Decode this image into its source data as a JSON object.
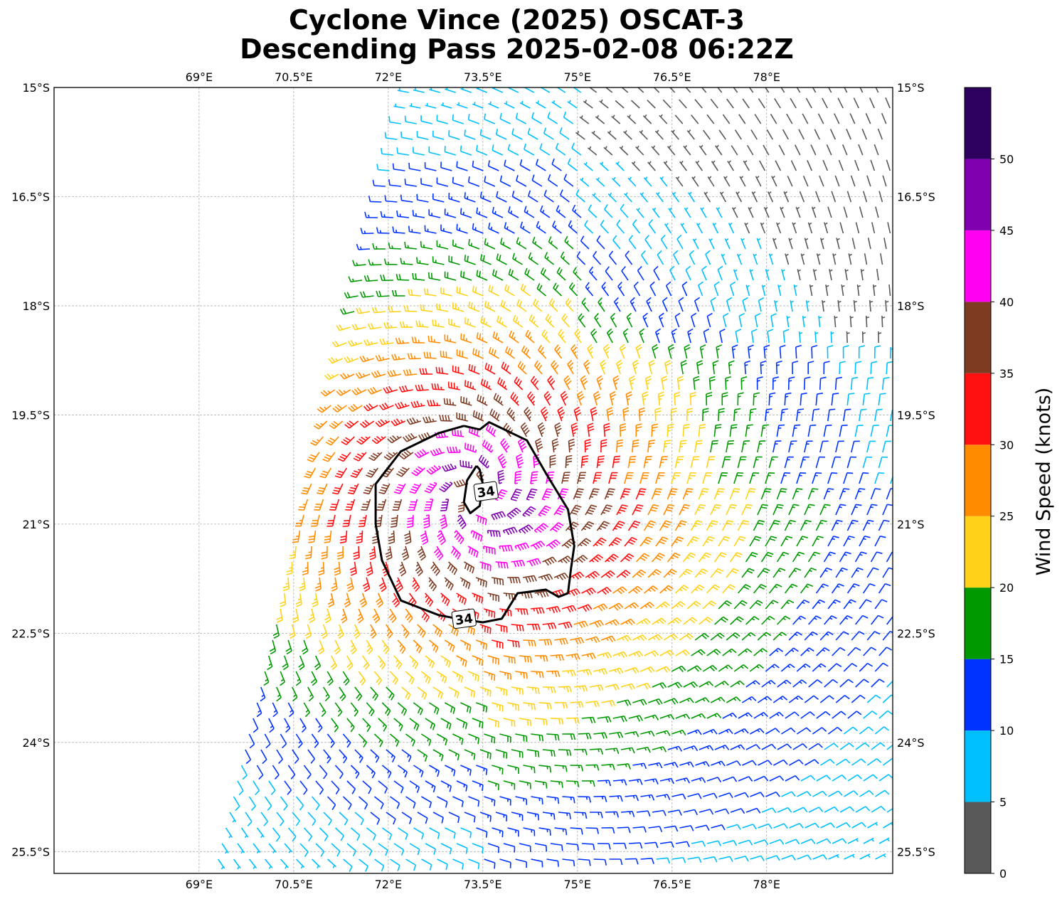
{
  "title_line1": "Cyclone Vince (2025) OSCAT-3",
  "title_line2": "Descending Pass 2025-02-08 06:22Z",
  "map": {
    "lon_range": [
      66.7,
      80.0
    ],
    "lat_range": [
      -15.0,
      -25.8
    ],
    "lon_ticks": [
      {
        "value": 69.0,
        "label": "69°E"
      },
      {
        "value": 70.5,
        "label": "70.5°E"
      },
      {
        "value": 72.0,
        "label": "72°E"
      },
      {
        "value": 73.5,
        "label": "73.5°E"
      },
      {
        "value": 75.0,
        "label": "75°E"
      },
      {
        "value": 76.5,
        "label": "76.5°E"
      },
      {
        "value": 78.0,
        "label": "78°E"
      }
    ],
    "lat_ticks": [
      {
        "value": -15.0,
        "label": "15°S"
      },
      {
        "value": -16.5,
        "label": "16.5°S"
      },
      {
        "value": -18.0,
        "label": "18°S"
      },
      {
        "value": -19.5,
        "label": "19.5°S"
      },
      {
        "value": -21.0,
        "label": "21°S"
      },
      {
        "value": -22.5,
        "label": "22.5°S"
      },
      {
        "value": -24.0,
        "label": "24°S"
      },
      {
        "value": -25.5,
        "label": "25.5°S"
      }
    ],
    "grid": true,
    "storm_center": {
      "lon": 73.4,
      "lat": -20.6
    },
    "swath_west_edge": [
      [
        72.3,
        -15.0
      ],
      [
        69.2,
        -25.8
      ]
    ],
    "contour_34kt": {
      "level_label": "34",
      "label_positions": [
        {
          "lon": 73.55,
          "lat": -20.55
        },
        {
          "lon": 73.2,
          "lat": -22.3
        }
      ],
      "outer": [
        [
          73.2,
          -19.65
        ],
        [
          72.8,
          -19.75
        ],
        [
          72.2,
          -20.0
        ],
        [
          71.8,
          -20.45
        ],
        [
          71.8,
          -21.0
        ],
        [
          71.9,
          -21.5
        ],
        [
          72.2,
          -22.05
        ],
        [
          72.5,
          -22.15
        ],
        [
          72.8,
          -22.25
        ],
        [
          73.1,
          -22.3
        ],
        [
          73.5,
          -22.35
        ],
        [
          73.8,
          -22.3
        ],
        [
          74.05,
          -21.95
        ],
        [
          74.5,
          -21.9
        ],
        [
          74.7,
          -22.0
        ],
        [
          74.85,
          -21.95
        ],
        [
          74.9,
          -21.6
        ],
        [
          74.95,
          -21.3
        ],
        [
          74.85,
          -20.8
        ],
        [
          74.5,
          -20.3
        ],
        [
          74.2,
          -19.85
        ],
        [
          73.6,
          -19.6
        ],
        [
          73.45,
          -19.7
        ],
        [
          73.2,
          -19.65
        ]
      ],
      "inner": [
        [
          73.4,
          -20.2
        ],
        [
          73.25,
          -20.4
        ],
        [
          73.2,
          -20.7
        ],
        [
          73.3,
          -20.85
        ],
        [
          73.45,
          -20.75
        ],
        [
          73.5,
          -20.45
        ],
        [
          73.45,
          -20.25
        ],
        [
          73.4,
          -20.2
        ]
      ]
    }
  },
  "colorbar": {
    "label": "Wind Speed (knots)",
    "bins": [
      {
        "from": 0,
        "to": 5,
        "color": "#595959"
      },
      {
        "from": 5,
        "to": 10,
        "color": "#00bfff"
      },
      {
        "from": 10,
        "to": 15,
        "color": "#0033ff"
      },
      {
        "from": 15,
        "to": 20,
        "color": "#009900"
      },
      {
        "from": 20,
        "to": 25,
        "color": "#ffd21a"
      },
      {
        "from": 25,
        "to": 30,
        "color": "#ff8c00"
      },
      {
        "from": 30,
        "to": 35,
        "color": "#ff1010"
      },
      {
        "from": 35,
        "to": 40,
        "color": "#7f3b22"
      },
      {
        "from": 40,
        "to": 45,
        "color": "#ff00f0"
      },
      {
        "from": 45,
        "to": 50,
        "color": "#8000b0"
      },
      {
        "from": 50,
        "to": 55,
        "color": "#2d0060"
      }
    ],
    "tick_labels": [
      "0",
      "5",
      "10",
      "15",
      "20",
      "25",
      "30",
      "35",
      "40",
      "45",
      "50"
    ]
  }
}
